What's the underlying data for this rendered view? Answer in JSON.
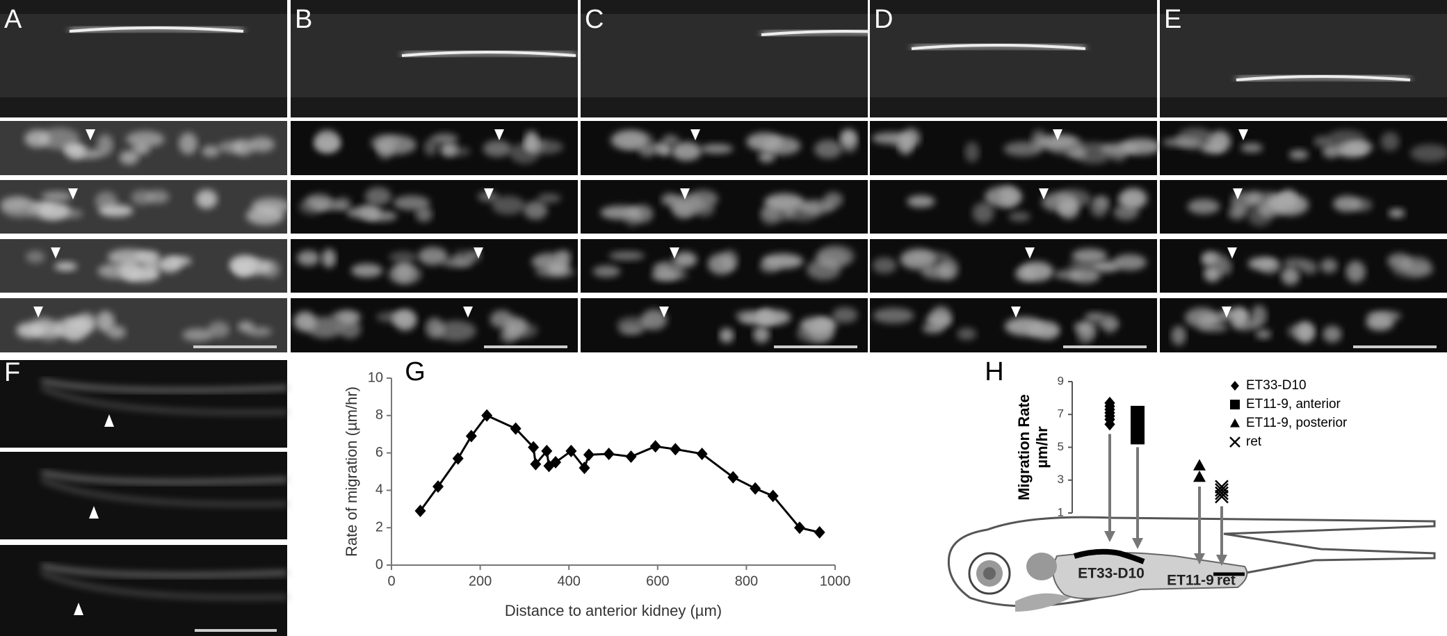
{
  "panel_labels": [
    "A",
    "B",
    "C",
    "D",
    "E",
    "F"
  ],
  "chart_data": [
    {
      "type": "line",
      "letter": "G",
      "xlabel": "Distance to anterior kidney (µm)",
      "ylabel": "Rate of migration (µm/hr)",
      "x": [
        65,
        105,
        150,
        180,
        215,
        280,
        320,
        325,
        350,
        355,
        370,
        405,
        435,
        445,
        490,
        540,
        595,
        640,
        700,
        770,
        820,
        860,
        920,
        965
      ],
      "series": [
        {
          "color": "#000000",
          "values": [
            2.9,
            4.2,
            5.7,
            6.9,
            8.0,
            7.3,
            6.3,
            5.4,
            6.1,
            5.3,
            5.5,
            6.1,
            5.2,
            5.9,
            5.95,
            5.8,
            6.35,
            6.2,
            5.95,
            4.7,
            4.1,
            3.7,
            2.0,
            1.75
          ]
        }
      ],
      "xlim": [
        0,
        1000
      ],
      "xticks": [
        0,
        200,
        400,
        600,
        800,
        1000
      ],
      "ylim": [
        0,
        10
      ],
      "yticks": [
        0,
        2,
        4,
        6,
        8,
        10
      ]
    },
    {
      "type": "scatter",
      "letter": "H",
      "ylabel": "Migration Rate",
      "ylabel_unit": "µm/hr",
      "ylim": [
        1,
        9
      ],
      "yticks": [
        1,
        3,
        5,
        7,
        9
      ],
      "series": [
        {
          "name": "ET33-D10",
          "marker": "diamond",
          "color": "#000000",
          "values": [
            6.4,
            6.7,
            6.9,
            7.1,
            7.3,
            7.5,
            7.7
          ]
        },
        {
          "name": "ET11-9, anterior",
          "marker": "square",
          "color": "#000000",
          "values": [
            5.6,
            5.9,
            6.2,
            6.5,
            6.8,
            7.1
          ]
        },
        {
          "name": "ET11-9, posterior",
          "marker": "triangle",
          "color": "#000000",
          "values": [
            3.2,
            3.9
          ]
        },
        {
          "name": "ret",
          "marker": "cross",
          "color": "#000000",
          "values": [
            2.0,
            2.2,
            2.4,
            2.6
          ]
        }
      ],
      "annotations": [
        "ET33-D10",
        "ET11-9",
        "ret"
      ]
    }
  ]
}
